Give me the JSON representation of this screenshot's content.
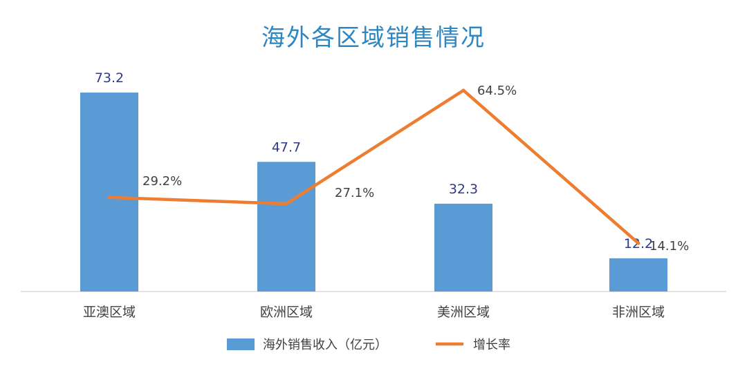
{
  "chart_data": {
    "type": "bar",
    "title": "海外各区域销售情况",
    "categories": [
      "亚澳区域",
      "欧洲区域",
      "美洲区域",
      "非洲区域"
    ],
    "series": [
      {
        "name": "海外销售收入（亿元）",
        "type": "bar",
        "values": [
          73.2,
          47.7,
          32.3,
          12.2
        ],
        "labels": [
          "73.2",
          "47.7",
          "32.3",
          "12.2"
        ],
        "color": "#5B9BD5",
        "label_color": "#2E3A87"
      },
      {
        "name": "增长率",
        "type": "line",
        "values": [
          29.2,
          27.1,
          64.5,
          14.1
        ],
        "labels": [
          "29.2%",
          "27.1%",
          "64.5%",
          "14.1%"
        ],
        "color": "#ED7D31",
        "label_color": "#404040"
      }
    ],
    "legend_position": "bottom",
    "grid": false
  },
  "colors": {
    "title": "#2E86C1",
    "axis": "#D9D9D9",
    "category_text": "#404040"
  }
}
